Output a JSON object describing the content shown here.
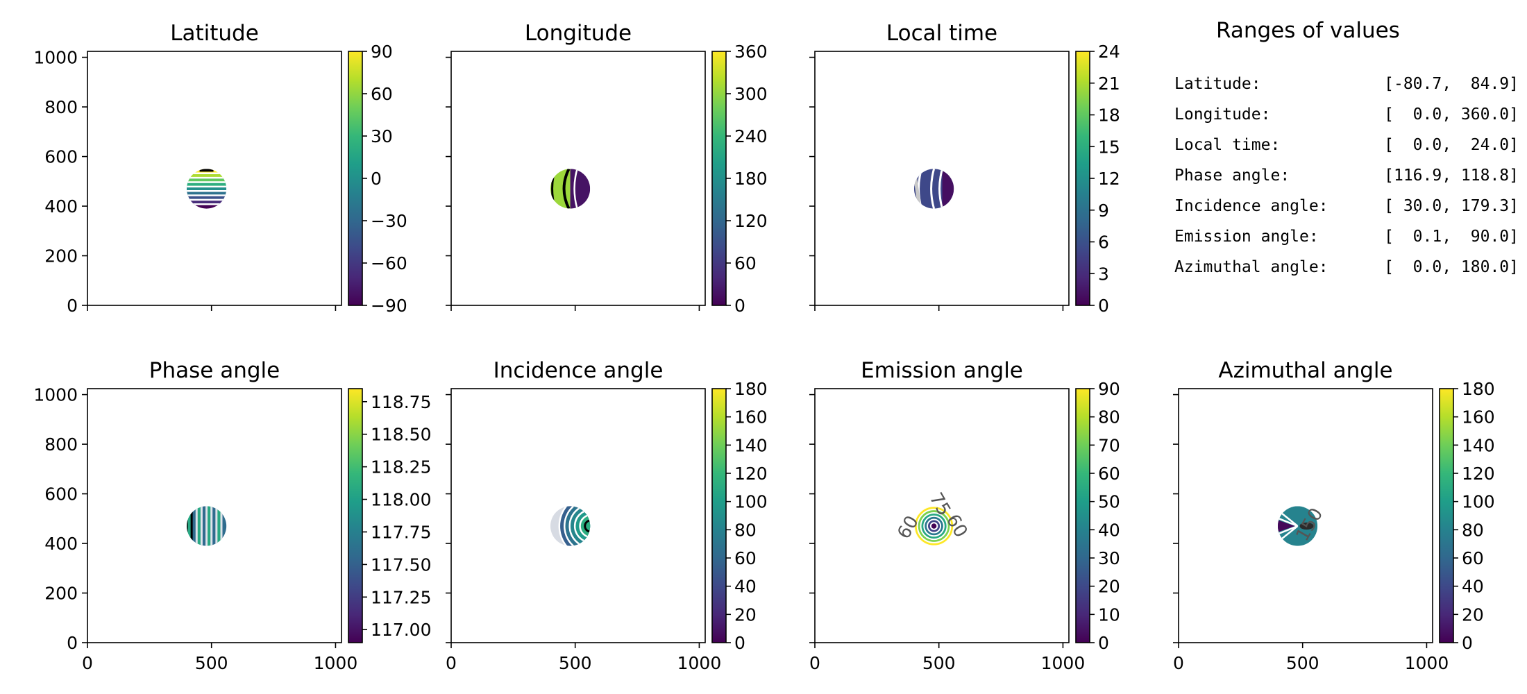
{
  "figure": {
    "subplot_titles": [
      "Latitude",
      "Longitude",
      "Local time",
      "Phase angle",
      "Incidence angle",
      "Emission angle",
      "Azimuthal angle"
    ],
    "ranges_panel": {
      "title": "Ranges of values",
      "rows": [
        {
          "label": "Latitude:",
          "value": "[-80.7,  84.9]"
        },
        {
          "label": "Longitude:",
          "value": "[  0.0, 360.0]"
        },
        {
          "label": "Local time:",
          "value": "[  0.0,  24.0]"
        },
        {
          "label": "Phase angle:",
          "value": "[116.9, 118.8]"
        },
        {
          "label": "Incidence angle:",
          "value": "[ 30.0, 179.3]"
        },
        {
          "label": "Emission angle:",
          "value": "[  0.1,  90.0]"
        },
        {
          "label": "Azimuthal angle:",
          "value": "[  0.0, 180.0]"
        }
      ]
    },
    "colors": {
      "colormap": "viridis",
      "contour": "#ffffff",
      "frame": "#000000"
    }
  },
  "chart_data": [
    {
      "type": "heatmap",
      "title": "Latitude",
      "x_range": [
        0,
        1024
      ],
      "y_range": [
        0,
        1024
      ],
      "x_ticks": [
        0,
        500,
        1000
      ],
      "y_ticks": [
        0,
        200,
        400,
        600,
        800,
        1000
      ],
      "x_tick_labels_shown": false,
      "y_tick_labels_shown": true,
      "disk": {
        "center_x": 480,
        "center_y": 470,
        "radius": 80
      },
      "pattern": "bands",
      "colorbar": {
        "min": -90,
        "max": 90,
        "ticks": [
          -90,
          -60,
          -30,
          0,
          30,
          60,
          90
        ],
        "tick_labels": [
          "−90",
          "−60",
          "−30",
          "0",
          "30",
          "60",
          "90"
        ]
      }
    },
    {
      "type": "heatmap",
      "title": "Longitude",
      "x_range": [
        0,
        1024
      ],
      "y_range": [
        0,
        1024
      ],
      "x_ticks": [
        0,
        500,
        1000
      ],
      "y_ticks": [
        0,
        200,
        400,
        600,
        800,
        1000
      ],
      "x_tick_labels_shown": false,
      "y_tick_labels_shown": false,
      "disk": {
        "center_x": 480,
        "center_y": 470,
        "radius": 80
      },
      "pattern": "halves",
      "colorbar": {
        "min": 0,
        "max": 360,
        "ticks": [
          0,
          60,
          120,
          180,
          240,
          300,
          360
        ],
        "tick_labels": [
          "0",
          "60",
          "120",
          "180",
          "240",
          "300",
          "360"
        ]
      }
    },
    {
      "type": "heatmap",
      "title": "Local time",
      "x_range": [
        0,
        1024
      ],
      "y_range": [
        0,
        1024
      ],
      "x_ticks": [
        0,
        500,
        1000
      ],
      "y_ticks": [
        0,
        200,
        400,
        600,
        800,
        1000
      ],
      "x_tick_labels_shown": false,
      "y_tick_labels_shown": false,
      "disk": {
        "center_x": 480,
        "center_y": 470,
        "radius": 80
      },
      "pattern": "meridians",
      "colorbar": {
        "min": 0,
        "max": 24,
        "ticks": [
          0,
          3,
          6,
          9,
          12,
          15,
          18,
          21,
          24
        ],
        "tick_labels": [
          "0",
          "3",
          "6",
          "9",
          "12",
          "15",
          "18",
          "21",
          "24"
        ]
      }
    },
    {
      "type": "heatmap",
      "title": "Phase angle",
      "x_range": [
        0,
        1024
      ],
      "y_range": [
        0,
        1024
      ],
      "x_ticks": [
        0,
        500,
        1000
      ],
      "y_ticks": [
        0,
        200,
        400,
        600,
        800,
        1000
      ],
      "x_tick_labels_shown": true,
      "y_tick_labels_shown": true,
      "disk": {
        "center_x": 480,
        "center_y": 470,
        "radius": 80
      },
      "pattern": "vstripes",
      "colorbar": {
        "min": 116.9,
        "max": 118.85,
        "ticks": [
          117.0,
          117.25,
          117.5,
          117.75,
          118.0,
          118.25,
          118.5,
          118.75
        ],
        "tick_labels": [
          "117.00",
          "117.25",
          "117.50",
          "117.75",
          "118.00",
          "118.25",
          "118.50",
          "118.75"
        ]
      }
    },
    {
      "type": "heatmap",
      "title": "Incidence angle",
      "x_range": [
        0,
        1024
      ],
      "y_range": [
        0,
        1024
      ],
      "x_ticks": [
        0,
        500,
        1000
      ],
      "y_ticks": [
        0,
        200,
        400,
        600,
        800,
        1000
      ],
      "x_tick_labels_shown": true,
      "y_tick_labels_shown": false,
      "disk": {
        "center_x": 480,
        "center_y": 470,
        "radius": 80
      },
      "pattern": "arcs",
      "colorbar": {
        "min": 0,
        "max": 180,
        "ticks": [
          0,
          20,
          40,
          60,
          80,
          100,
          120,
          140,
          160,
          180
        ],
        "tick_labels": [
          "0",
          "20",
          "40",
          "60",
          "80",
          "100",
          "120",
          "140",
          "160",
          "180"
        ]
      }
    },
    {
      "type": "heatmap",
      "title": "Emission angle",
      "x_range": [
        0,
        1024
      ],
      "y_range": [
        0,
        1024
      ],
      "x_ticks": [
        0,
        500,
        1000
      ],
      "y_ticks": [
        0,
        200,
        400,
        600,
        800,
        1000
      ],
      "x_tick_labels_shown": true,
      "y_tick_labels_shown": false,
      "disk": {
        "center_x": 480,
        "center_y": 470,
        "radius": 80
      },
      "pattern": "rings",
      "contour_labels": [
        "60",
        "75",
        "60"
      ],
      "colorbar": {
        "min": 0,
        "max": 90,
        "ticks": [
          0,
          10,
          20,
          30,
          40,
          50,
          60,
          70,
          80,
          90
        ],
        "tick_labels": [
          "0",
          "10",
          "20",
          "30",
          "40",
          "50",
          "60",
          "70",
          "80",
          "90"
        ]
      }
    },
    {
      "type": "heatmap",
      "title": "Azimuthal angle",
      "x_range": [
        0,
        1024
      ],
      "y_range": [
        0,
        1024
      ],
      "x_ticks": [
        0,
        500,
        1000
      ],
      "y_ticks": [
        0,
        200,
        400,
        600,
        800,
        1000
      ],
      "x_tick_labels_shown": true,
      "y_tick_labels_shown": false,
      "disk": {
        "center_x": 480,
        "center_y": 470,
        "radius": 80
      },
      "pattern": "azimuth",
      "contour_labels": [
        "150"
      ],
      "colorbar": {
        "min": 0,
        "max": 180,
        "ticks": [
          0,
          20,
          40,
          60,
          80,
          100,
          120,
          140,
          160,
          180
        ],
        "tick_labels": [
          "0",
          "20",
          "40",
          "60",
          "80",
          "100",
          "120",
          "140",
          "160",
          "180"
        ]
      }
    }
  ]
}
